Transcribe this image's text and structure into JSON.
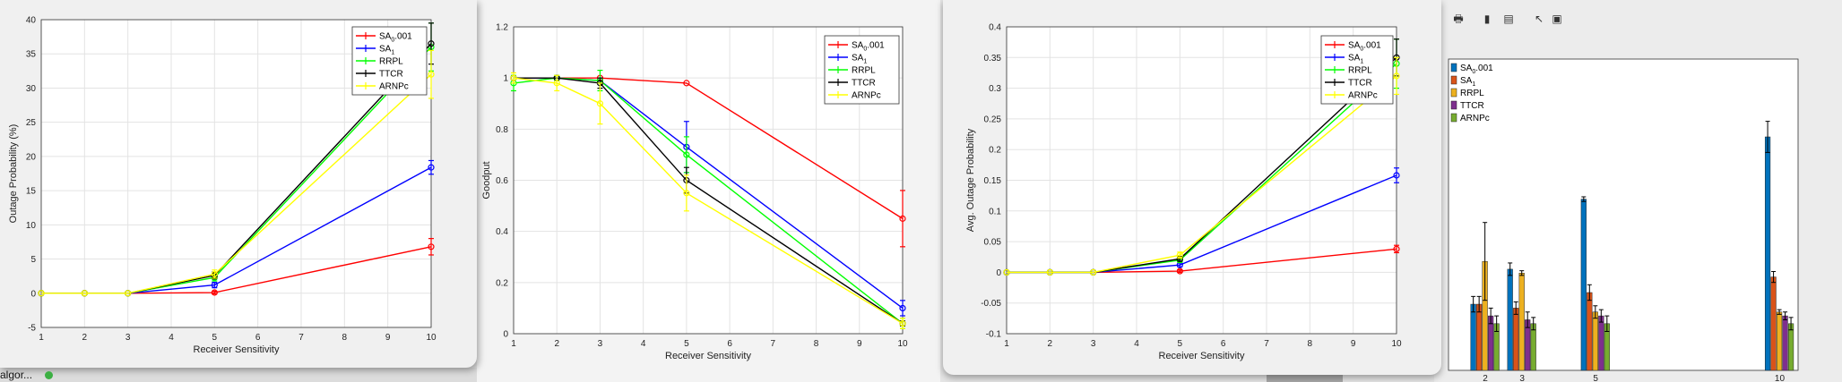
{
  "chart_data": [
    {
      "type": "line",
      "xlabel": "Receiver Sensitivity",
      "ylabel": "Outage Probability (%)",
      "xlim": [
        1,
        10
      ],
      "ylim": [
        -5,
        40
      ],
      "xticks": [
        "1",
        "2",
        "3",
        "4",
        "5",
        "6",
        "7",
        "8",
        "9",
        "10"
      ],
      "yticks": [
        "-5",
        "0",
        "5",
        "10",
        "15",
        "20",
        "25",
        "30",
        "35",
        "40"
      ],
      "grid": true,
      "legend": "top-right",
      "x": [
        1,
        2,
        3,
        5,
        10
      ],
      "series": [
        {
          "name": "SA0.001",
          "color": "#ff0000",
          "values": [
            0,
            0,
            0,
            0.1,
            6.8
          ],
          "err": [
            0,
            0,
            0,
            0.2,
            1.2
          ]
        },
        {
          "name": "SA1",
          "color": "#0000ff",
          "values": [
            0,
            0,
            0,
            1.2,
            18.4
          ],
          "err": [
            0,
            0,
            0,
            0.4,
            1.0
          ]
        },
        {
          "name": "RRPL",
          "color": "#00ff00",
          "values": [
            0,
            0,
            0,
            2.3,
            36.0
          ],
          "err": [
            0,
            0,
            0,
            0.5,
            3.5
          ]
        },
        {
          "name": "TTCR",
          "color": "#000000",
          "values": [
            0,
            0,
            0,
            2.6,
            36.5
          ],
          "err": [
            0,
            0,
            0,
            0.5,
            3.0
          ]
        },
        {
          "name": "ARNPc",
          "color": "#ffff00",
          "values": [
            0,
            0,
            0,
            2.8,
            32.0
          ],
          "err": [
            0,
            0,
            0,
            0.6,
            3.5
          ]
        }
      ]
    },
    {
      "type": "line",
      "xlabel": "Receiver Sensitivity",
      "ylabel": "Goodput",
      "xlim": [
        1,
        10
      ],
      "ylim": [
        0,
        1.2
      ],
      "xticks": [
        "1",
        "2",
        "3",
        "4",
        "5",
        "6",
        "7",
        "8",
        "9",
        "10"
      ],
      "yticks": [
        "0",
        "0.2",
        "0.4",
        "0.6",
        "0.8",
        "1",
        "1.2"
      ],
      "grid": true,
      "legend": "top-right",
      "x": [
        1,
        2,
        3,
        5,
        10
      ],
      "series": [
        {
          "name": "SA0.001",
          "color": "#ff0000",
          "values": [
            1,
            1,
            1,
            0.98,
            0.45
          ],
          "err": [
            0,
            0,
            0,
            0,
            0.11
          ]
        },
        {
          "name": "SA1",
          "color": "#0000ff",
          "values": [
            1,
            1,
            0.99,
            0.73,
            0.1
          ],
          "err": [
            0,
            0,
            0.01,
            0.1,
            0.03
          ]
        },
        {
          "name": "RRPL",
          "color": "#00ff00",
          "values": [
            0.98,
            1,
            0.99,
            0.7,
            0.04
          ],
          "err": [
            0.03,
            0.01,
            0.04,
            0.07,
            0.02
          ]
        },
        {
          "name": "TTCR",
          "color": "#000000",
          "values": [
            1,
            1,
            0.98,
            0.6,
            0.04
          ],
          "err": [
            0,
            0,
            0.02,
            0.05,
            0.01
          ]
        },
        {
          "name": "ARNPc",
          "color": "#ffff00",
          "values": [
            1,
            0.98,
            0.9,
            0.55,
            0.04
          ],
          "err": [
            0.02,
            0.03,
            0.08,
            0.07,
            0.02
          ]
        }
      ]
    },
    {
      "type": "line",
      "xlabel": "Receiver Sensitivity",
      "ylabel": "Avg. Outage Probability",
      "xlim": [
        1,
        10
      ],
      "ylim": [
        -0.1,
        0.4
      ],
      "xticks": [
        "1",
        "2",
        "3",
        "4",
        "5",
        "6",
        "7",
        "8",
        "9",
        "10"
      ],
      "yticks": [
        "-0.1",
        "-0.05",
        "0",
        "0.05",
        "0.1",
        "0.15",
        "0.2",
        "0.25",
        "0.3",
        "0.35",
        "0.4"
      ],
      "grid": true,
      "legend": "top-right",
      "x": [
        1,
        2,
        3,
        5,
        10
      ],
      "series": [
        {
          "name": "SA0.001",
          "color": "#ff0000",
          "values": [
            0,
            0,
            0,
            0.002,
            0.038
          ],
          "err": [
            0,
            0,
            0,
            0.002,
            0.006
          ]
        },
        {
          "name": "SA1",
          "color": "#0000ff",
          "values": [
            0,
            0,
            0,
            0.012,
            0.158
          ],
          "err": [
            0,
            0,
            0,
            0.003,
            0.012
          ]
        },
        {
          "name": "RRPL",
          "color": "#00ff00",
          "values": [
            0,
            0,
            0,
            0.02,
            0.34
          ],
          "err": [
            0,
            0,
            0,
            0.004,
            0.04
          ]
        },
        {
          "name": "TTCR",
          "color": "#000000",
          "values": [
            0,
            0,
            0,
            0.022,
            0.35
          ],
          "err": [
            0,
            0,
            0,
            0.004,
            0.03
          ]
        },
        {
          "name": "ARNPc",
          "color": "#ffff00",
          "values": [
            0,
            0,
            0,
            0.028,
            0.32
          ],
          "err": [
            0,
            0,
            0,
            0.005,
            0.03
          ]
        }
      ]
    },
    {
      "type": "bar",
      "xlabel": "",
      "ylabel": "",
      "xlim": [
        1,
        10.5
      ],
      "ylim": [
        0,
        0.4
      ],
      "xticks": [
        "2",
        "3",
        "5",
        "10"
      ],
      "grid": false,
      "legend": "top-left",
      "categories": [
        "2",
        "3",
        "5",
        "10"
      ],
      "series": [
        {
          "name": "SA0.001",
          "color": "#0072bd",
          "values": [
            0.085,
            0.13,
            0.22,
            0.3
          ],
          "err": [
            0.01,
            0.008,
            0.003,
            0.02
          ]
        },
        {
          "name": "SA1",
          "color": "#d95319",
          "values": [
            0.085,
            0.08,
            0.1,
            0.12
          ],
          "err": [
            0.01,
            0.008,
            0.01,
            0.007
          ]
        },
        {
          "name": "RRPL",
          "color": "#edb120",
          "values": [
            0.14,
            0.125,
            0.075,
            0.075
          ],
          "err": [
            0.05,
            0.003,
            0.008,
            0.003
          ]
        },
        {
          "name": "TTCR",
          "color": "#7e2f8e",
          "values": [
            0.07,
            0.065,
            0.07,
            0.07
          ],
          "err": [
            0.01,
            0.01,
            0.008,
            0.005
          ]
        },
        {
          "name": "ARNPc",
          "color": "#77ac30",
          "values": [
            0.06,
            0.06,
            0.06,
            0.06
          ],
          "err": [
            0.01,
            0.008,
            0.01,
            0.008
          ]
        }
      ]
    }
  ],
  "status": {
    "text": "algor..."
  }
}
